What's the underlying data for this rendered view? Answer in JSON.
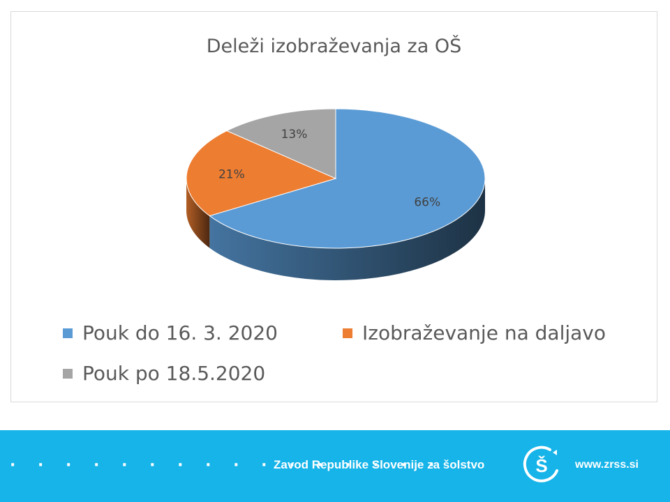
{
  "chart_data": {
    "type": "pie",
    "title": "Deleži izobraževanja za OŠ",
    "categories": [
      "Pouk do 16. 3. 2020",
      "Izobraževanje na daljavo",
      "Pouk po 18.5.2020"
    ],
    "values": [
      66,
      21,
      13
    ],
    "data_labels": [
      "66%",
      "21%",
      "13%"
    ],
    "colors": [
      "#5b9bd5",
      "#ed7d31",
      "#a5a5a5"
    ],
    "legend_position": "bottom",
    "style": "3d"
  },
  "footer": {
    "dots": "· · · · · · · · · · · · · · · ·",
    "organization": "Zavod Republike Slovenije za šolstvo",
    "logo_text": "Š",
    "url": "www.zrss.si",
    "color": "#16b4e9"
  }
}
